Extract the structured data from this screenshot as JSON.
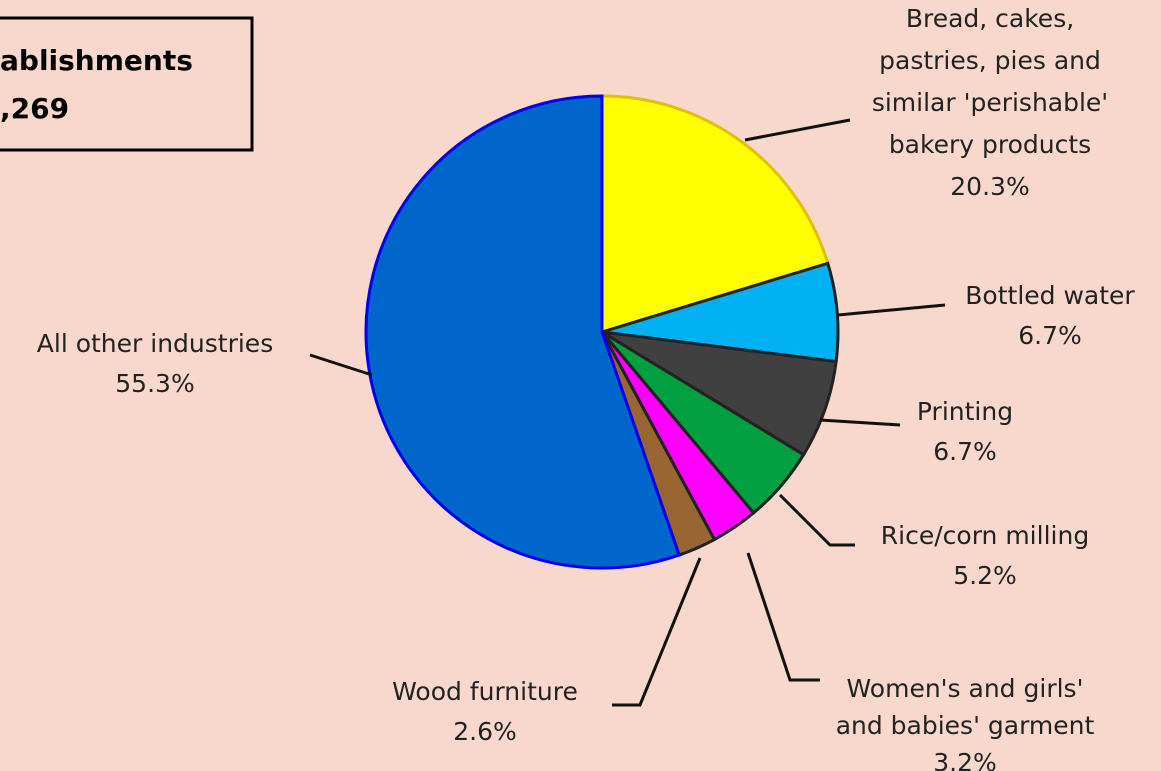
{
  "chart_data": {
    "type": "pie",
    "annotation": [
      "ablishments",
      ",269"
    ],
    "categories": [
      [
        "Bread, cakes,",
        "pastries, pies and",
        "similar 'perishable'",
        "bakery products"
      ],
      [
        "Bottled water"
      ],
      [
        "Printing"
      ],
      [
        "Rice/corn milling"
      ],
      [
        "Women's and girls'",
        "and babies' garment"
      ],
      [
        "Wood furniture"
      ],
      [
        "All other industries"
      ]
    ],
    "values": [
      20.3,
      6.7,
      6.7,
      5.2,
      3.2,
      2.6,
      55.3
    ],
    "value_labels": [
      "20.3%",
      "6.7%",
      "6.7%",
      "5.2%",
      "3.2%",
      "2.6%",
      "55.3%"
    ],
    "colors": [
      "#ffff00",
      "#00b0f0",
      "#404040",
      "#00a040",
      "#ff00ff",
      "#996633",
      "#0066cc"
    ]
  }
}
